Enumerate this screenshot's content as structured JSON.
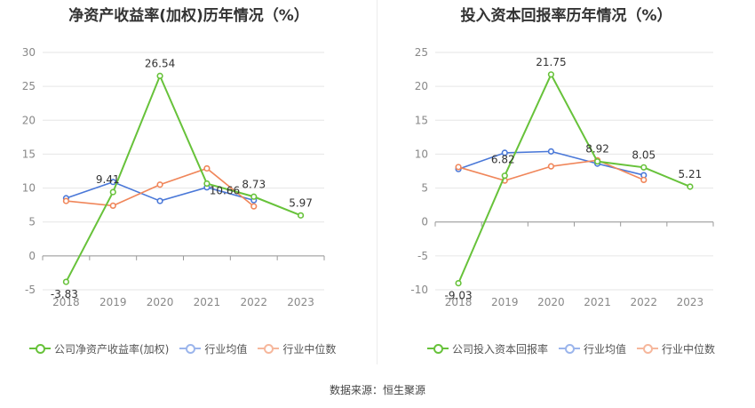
{
  "source_text": "数据来源：恒生聚源",
  "colors": {
    "company": "#67c23a",
    "avg": "#4a78d8",
    "median": "#f0865a"
  },
  "chart_data": [
    {
      "type": "line",
      "title": "净资产收益率(加权)历年情况（%）",
      "x": [
        "2018",
        "2019",
        "2020",
        "2021",
        "2022",
        "2023"
      ],
      "ylim": [
        -5,
        30
      ],
      "yticks": [
        -5,
        0,
        5,
        10,
        15,
        20,
        25,
        30
      ],
      "grid": true,
      "legend_position": "bottom",
      "series": [
        {
          "name": "公司净资产收益率(加权)",
          "key": "company",
          "values": [
            -3.83,
            9.41,
            26.54,
            10.66,
            8.73,
            5.97
          ],
          "labels": [
            "-3.83",
            "9.41",
            "26.54",
            "10.66",
            "8.73",
            "5.97"
          ]
        },
        {
          "name": "行业均值",
          "key": "avg",
          "values": [
            8.5,
            10.9,
            8.1,
            10.1,
            8.2,
            null
          ]
        },
        {
          "name": "行业中位数",
          "key": "median",
          "values": [
            8.1,
            7.4,
            10.5,
            12.9,
            7.3,
            null
          ]
        }
      ]
    },
    {
      "type": "line",
      "title": "投入资本回报率历年情况（%）",
      "x": [
        "2018",
        "2019",
        "2020",
        "2021",
        "2022",
        "2023"
      ],
      "ylim": [
        -10,
        25
      ],
      "yticks": [
        -10,
        -5,
        0,
        5,
        10,
        15,
        20,
        25
      ],
      "grid": true,
      "legend_position": "bottom",
      "series": [
        {
          "name": "公司投入资本回报率",
          "key": "company",
          "values": [
            -9.03,
            6.82,
            21.75,
            8.92,
            8.05,
            5.21
          ],
          "labels": [
            "-9.03",
            "6.82",
            "21.75",
            "8.92",
            "8.05",
            "5.21"
          ]
        },
        {
          "name": "行业均值",
          "key": "avg",
          "values": [
            7.8,
            10.2,
            10.4,
            8.6,
            6.9,
            null
          ]
        },
        {
          "name": "行业中位数",
          "key": "median",
          "values": [
            8.1,
            6.1,
            8.2,
            9.1,
            6.2,
            null
          ]
        }
      ]
    }
  ]
}
